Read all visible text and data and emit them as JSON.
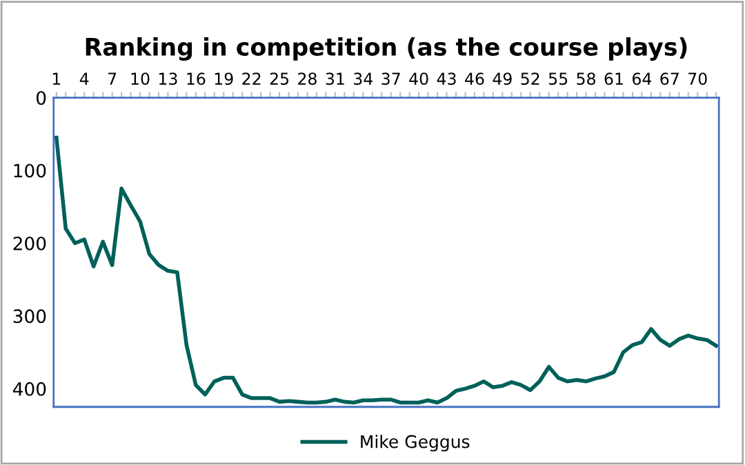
{
  "chart_data": {
    "type": "line",
    "title": "Ranking in competition (as the course plays)",
    "categories": [
      "1",
      null,
      null,
      "4",
      null,
      null,
      "7",
      null,
      null,
      "10",
      null,
      null,
      "13",
      null,
      null,
      "16",
      null,
      null,
      "19",
      null,
      null,
      "22",
      null,
      null,
      "25",
      null,
      null,
      "28",
      null,
      null,
      "31",
      null,
      null,
      "34",
      null,
      null,
      "37",
      null,
      null,
      "40",
      null,
      null,
      "43",
      null,
      null,
      "46",
      null,
      null,
      "49",
      null,
      null,
      "52",
      null,
      null,
      "55",
      null,
      null,
      "58",
      null,
      null,
      "61",
      null,
      null,
      "64",
      null,
      null,
      "67",
      null,
      null,
      "70",
      null,
      null
    ],
    "series": [
      {
        "name": "Mike Geggus",
        "color": "#00605a",
        "values": [
          55,
          180,
          200,
          195,
          232,
          198,
          230,
          125,
          148,
          170,
          215,
          230,
          238,
          240,
          340,
          395,
          408,
          390,
          385,
          385,
          408,
          413,
          413,
          413,
          418,
          417,
          418,
          419,
          419,
          418,
          415,
          418,
          419,
          416,
          416,
          415,
          415,
          419,
          419,
          419,
          416,
          419,
          413,
          403,
          400,
          396,
          390,
          398,
          396,
          391,
          395,
          402,
          390,
          370,
          385,
          390,
          388,
          390,
          386,
          383,
          377,
          350,
          340,
          336,
          318,
          333,
          341,
          332,
          327,
          331,
          333,
          341
        ]
      }
    ],
    "ylim": [
      425,
      0
    ],
    "yticks": [
      0,
      100,
      200,
      300,
      400
    ],
    "grid": false,
    "legend": "bottom",
    "marker": "none",
    "line_style": "solid"
  }
}
